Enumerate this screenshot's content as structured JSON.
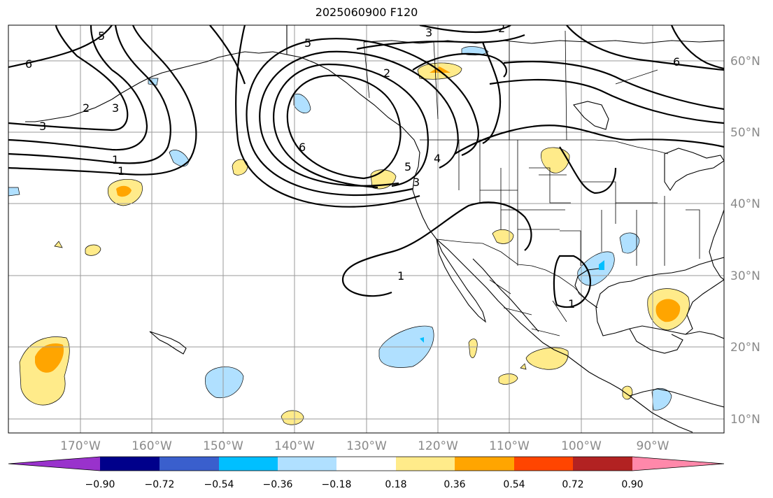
{
  "title": "2025060900 F120",
  "lat_labels": [
    "60°N",
    "50°N",
    "40°N",
    "30°N",
    "20°N",
    "10°N"
  ],
  "lon_labels": [
    "170°W",
    "160°W",
    "150°W",
    "140°W",
    "130°W",
    "120°W",
    "110°W",
    "100°W",
    "90°W"
  ],
  "contour_labels": [
    "6",
    "5",
    "2",
    "3",
    "1",
    "6",
    "5",
    "2",
    "3",
    "6",
    "2",
    "1",
    "5",
    "3",
    "4",
    "1",
    "1",
    "3"
  ],
  "colorbar": {
    "tick_labels": [
      "−0.90",
      "−0.72",
      "−0.54",
      "−0.36",
      "−0.18",
      "0.18",
      "0.36",
      "0.54",
      "0.72",
      "0.90"
    ],
    "colors": [
      "#9932cc",
      "#00008b",
      "#3a5fcd",
      "#00bfff",
      "#b0e0ff",
      "#ffffff",
      "#ffeb8a",
      "#ffa500",
      "#ff4500",
      "#b22222",
      "#ff88aa"
    ]
  },
  "fill_colors": {
    "light_blue": "#b0e0ff",
    "blue": "#00bfff",
    "light_yellow": "#ffeb8a",
    "orange": "#ffa500"
  }
}
